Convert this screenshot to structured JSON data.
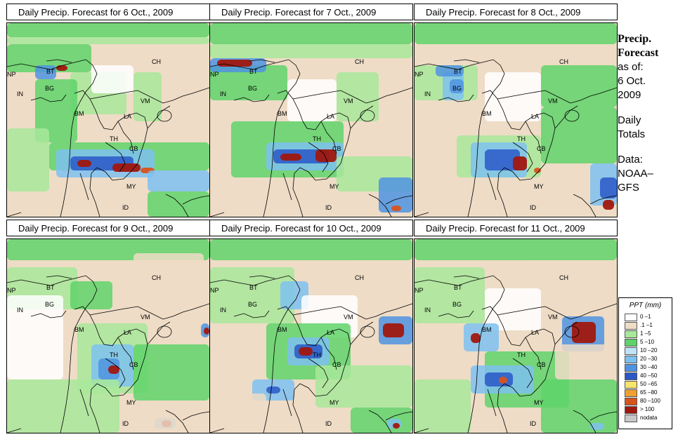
{
  "panels": [
    {
      "title": "Daily Precip. Forecast for  6 Oct., 2009"
    },
    {
      "title": "Daily Precip. Forecast for  7 Oct., 2009"
    },
    {
      "title": "Daily Precip. Forecast for  8 Oct., 2009"
    },
    {
      "title": "Daily Precip. Forecast for  9 Oct., 2009"
    },
    {
      "title": "Daily Precip. Forecast for  10 Oct., 2009"
    },
    {
      "title": "Daily Precip. Forecast for  11 Oct., 2009"
    }
  ],
  "country_labels": [
    "NP",
    "BT",
    "IN",
    "BG",
    "BM",
    "CH",
    "VM",
    "LA",
    "TH",
    "CB",
    "MY",
    "ID"
  ],
  "sidebar": {
    "heading_line1": "Precip.",
    "heading_line2": "Forecast",
    "asof_label": "as of:",
    "date_line1": "6 Oct.",
    "date_line2": "2009",
    "type_line1": "Daily",
    "type_line2": "Totals",
    "source_line1": "Data:",
    "source_line2": "NOAA–",
    "source_line3": "GFS"
  },
  "legend": {
    "title": "PPT (mm)",
    "entries": [
      {
        "label": "0 –1",
        "color": "#ffffff"
      },
      {
        "label": ".1 –1",
        "color": "#eedcc6"
      },
      {
        "label": "1 –5",
        "color": "#a8e89a"
      },
      {
        "label": "5 –10",
        "color": "#5fd36a"
      },
      {
        "label": "10 –20",
        "color": "#bfe4f7"
      },
      {
        "label": "20 –30",
        "color": "#7ec1f0"
      },
      {
        "label": "30 –40",
        "color": "#4f93e0"
      },
      {
        "label": "40 –50",
        "color": "#2a58c8"
      },
      {
        "label": "50 –65",
        "color": "#f7e46a"
      },
      {
        "label": "65 –80",
        "color": "#f0a030"
      },
      {
        "label": "80 –100",
        "color": "#d9531c"
      },
      {
        "label": "> 100",
        "color": "#a0180e"
      },
      {
        "label": "nodata",
        "color": "#c8c8c8"
      }
    ]
  }
}
